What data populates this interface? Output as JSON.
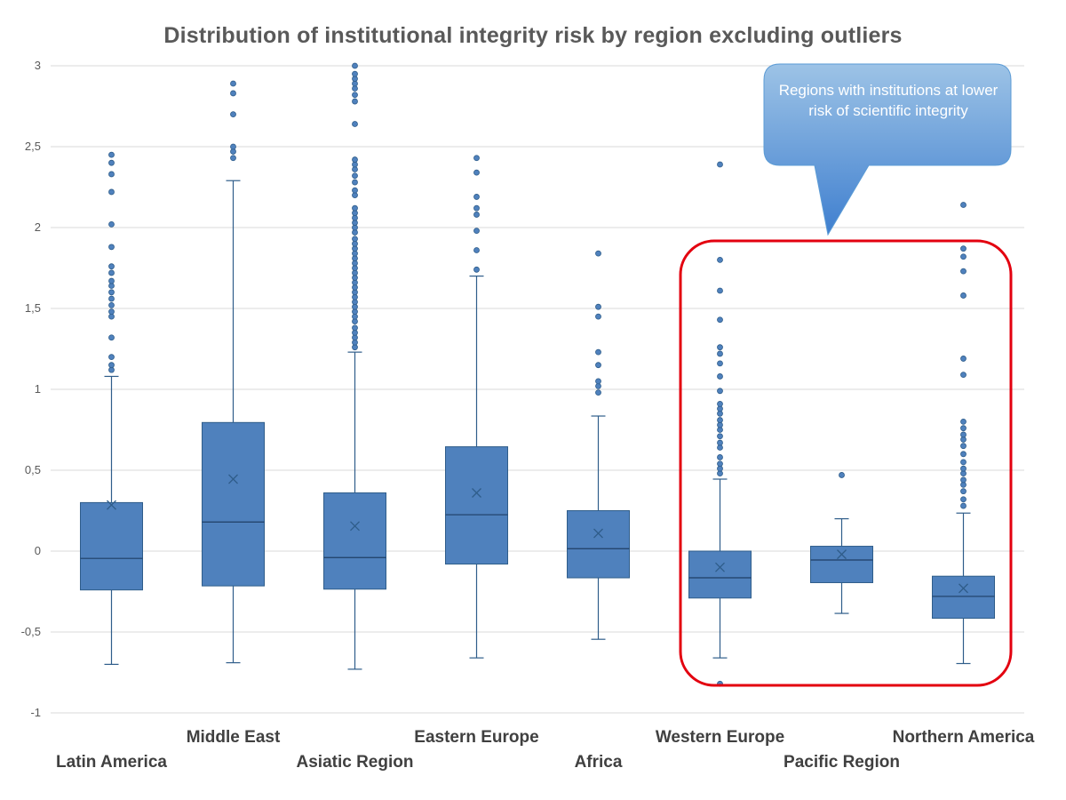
{
  "chart_data": {
    "type": "box",
    "title": "Distribution of institutional integrity risk by region excluding outliers",
    "xlabel": "",
    "ylabel": "",
    "ylim": [
      -1,
      3
    ],
    "yticks": [
      {
        "value": 3,
        "label": "3"
      },
      {
        "value": 2.5,
        "label": "2,5"
      },
      {
        "value": 2,
        "label": "2"
      },
      {
        "value": 1.5,
        "label": "1,5"
      },
      {
        "value": 1,
        "label": "1"
      },
      {
        "value": 0.5,
        "label": "0,5"
      },
      {
        "value": 0,
        "label": "0"
      },
      {
        "value": -0.5,
        "label": "-0,5"
      },
      {
        "value": -1,
        "label": "-1"
      }
    ],
    "grid": true,
    "colors": {
      "box": "#4f81bd",
      "box_edge": "#2f5d8a",
      "grid": "#d9d9d9",
      "highlight": "#e3000f",
      "callout": "#5b9bd5"
    },
    "categories": [
      "Latin America",
      "Middle East",
      "Asiatic Region",
      "Eastern Europe",
      "Africa",
      "Western Europe",
      "Pacific Region",
      "Northern America"
    ],
    "series": [
      {
        "name": "Latin America",
        "whisker_low": -0.7,
        "q1": -0.24,
        "median": -0.045,
        "q3": 0.3,
        "whisker_high": 1.08,
        "mean": 0.285,
        "outliers": [
          1.12,
          1.15,
          1.2,
          1.32,
          1.45,
          1.48,
          1.52,
          1.56,
          1.6,
          1.64,
          1.67,
          1.72,
          1.76,
          1.88,
          2.02,
          2.22,
          2.33,
          2.4,
          2.45
        ]
      },
      {
        "name": "Middle East",
        "whisker_low": -0.69,
        "q1": -0.215,
        "median": 0.18,
        "q3": 0.795,
        "whisker_high": 2.29,
        "mean": 0.445,
        "outliers": [
          2.43,
          2.47,
          2.5,
          2.7,
          2.83,
          2.89
        ]
      },
      {
        "name": "Asiatic Region",
        "whisker_low": -0.73,
        "q1": -0.235,
        "median": -0.04,
        "q3": 0.36,
        "whisker_high": 1.23,
        "mean": 0.155,
        "outliers": [
          1.26,
          1.29,
          1.32,
          1.35,
          1.38,
          1.42,
          1.45,
          1.48,
          1.51,
          1.54,
          1.57,
          1.6,
          1.63,
          1.66,
          1.69,
          1.72,
          1.75,
          1.78,
          1.81,
          1.84,
          1.87,
          1.9,
          1.93,
          1.97,
          2.0,
          2.03,
          2.06,
          2.09,
          2.12,
          2.2,
          2.23,
          2.28,
          2.32,
          2.36,
          2.39,
          2.42,
          2.64,
          2.78,
          2.82,
          2.86,
          2.89,
          2.92,
          2.95,
          3.0
        ]
      },
      {
        "name": "Eastern Europe",
        "whisker_low": -0.66,
        "q1": -0.08,
        "median": 0.225,
        "q3": 0.645,
        "whisker_high": 1.7,
        "mean": 0.36,
        "outliers": [
          1.74,
          1.86,
          1.98,
          2.08,
          2.12,
          2.19,
          2.34,
          2.43
        ]
      },
      {
        "name": "Africa",
        "whisker_low": -0.545,
        "q1": -0.165,
        "median": 0.015,
        "q3": 0.25,
        "whisker_high": 0.835,
        "mean": 0.11,
        "outliers": [
          0.98,
          1.02,
          1.05,
          1.15,
          1.23,
          1.45,
          1.51,
          1.84
        ]
      },
      {
        "name": "Western Europe",
        "whisker_low": -0.66,
        "q1": -0.29,
        "median": -0.165,
        "q3": 0.0,
        "whisker_high": 0.445,
        "mean": -0.1,
        "outliers": [
          -0.82,
          0.48,
          0.51,
          0.54,
          0.58,
          0.64,
          0.67,
          0.71,
          0.75,
          0.78,
          0.81,
          0.85,
          0.88,
          0.91,
          0.99,
          1.08,
          1.16,
          1.22,
          1.26,
          1.43,
          1.61,
          1.8,
          2.39
        ]
      },
      {
        "name": "Pacific Region",
        "whisker_low": -0.385,
        "q1": -0.195,
        "median": -0.055,
        "q3": 0.03,
        "whisker_high": 0.2,
        "mean": -0.02,
        "outliers": [
          0.47
        ]
      },
      {
        "name": "Northern America",
        "whisker_low": -0.695,
        "q1": -0.415,
        "median": -0.28,
        "q3": -0.155,
        "whisker_high": 0.235,
        "mean": -0.23,
        "outliers": [
          0.28,
          0.32,
          0.37,
          0.41,
          0.44,
          0.48,
          0.51,
          0.55,
          0.6,
          0.65,
          0.69,
          0.72,
          0.76,
          0.8,
          1.09,
          1.19,
          1.58,
          1.73,
          1.82,
          1.87,
          2.14
        ]
      }
    ],
    "annotation": {
      "text": "Regions with institutions at lower risk of scientific integrity",
      "target_categories": [
        "Western Europe",
        "Pacific Region",
        "Northern America"
      ]
    }
  }
}
